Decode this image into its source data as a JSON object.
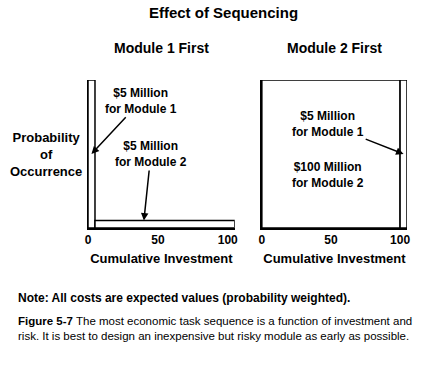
{
  "title": "Effect of Sequencing",
  "note": "Note: All costs are expected values (probability weighted).",
  "caption": {
    "label": "Figure 5-7",
    "text": "The most economic task sequence is a function of investment and risk. It is best to design an inexpensive but risky module as early as possible."
  },
  "chart_data": [
    {
      "type": "bar",
      "title": "Module 1 First",
      "xlabel": "Cumulative Investment",
      "ylabel": "Probability\nof\nOccurrence",
      "xlim": [
        0,
        105
      ],
      "xticks": [
        0,
        50,
        100
      ],
      "ylim": [
        0,
        1
      ],
      "tick_labels": "x",
      "color": "#ffffff",
      "bars": [
        {
          "label": "$5 Million\nfor Module 1",
          "x": 0,
          "width": 5,
          "value": 1
        },
        {
          "label": "$5 Million\nfor Module 2",
          "x": 5,
          "width": 100,
          "value": 0.05
        }
      ]
    },
    {
      "type": "bar",
      "title": "Module 2 First",
      "xlabel": "Cumulative Investment",
      "xlim": [
        0,
        105
      ],
      "xticks": [
        0,
        50,
        100
      ],
      "ylim": [
        0,
        1
      ],
      "tick_labels": "x",
      "color": "#ffffff",
      "bars": [
        {
          "label": "$100 Million\nfor Module 2",
          "x": 0,
          "width": 100,
          "value": 1
        },
        {
          "label": "$5 Million\nfor Module 1",
          "x": 100,
          "width": 5,
          "value": 1
        }
      ]
    }
  ]
}
